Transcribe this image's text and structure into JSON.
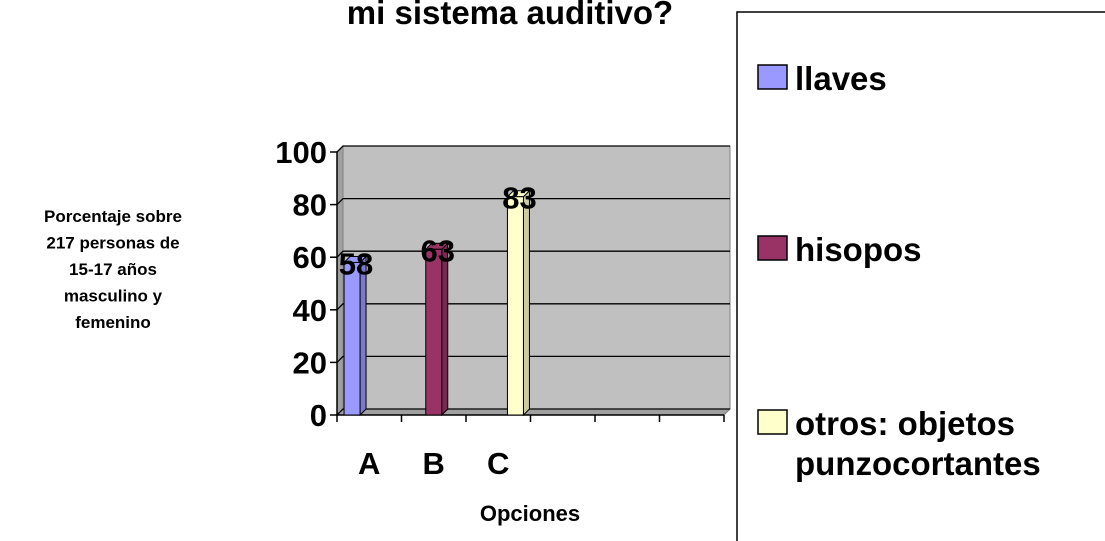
{
  "chart_data": {
    "type": "bar",
    "title": "mi sistema auditivo?",
    "xlabel": "Opciones",
    "ylabel": [
      "Porcentaje sobre",
      "217 personas de",
      "15-17 años",
      "masculino y",
      "femenino"
    ],
    "categories": [
      "A",
      "B",
      "C",
      null,
      null,
      null
    ],
    "series": [
      {
        "name": "llaves",
        "color": "#9999ff",
        "values": [
          58,
          null,
          null,
          null,
          null,
          null
        ]
      },
      {
        "name": "hisopos",
        "color": "#993366",
        "values": [
          null,
          63,
          null,
          null,
          null,
          null
        ]
      },
      {
        "name": "otros: objetos punzocortantes",
        "color": "#ffffcc",
        "values": [
          null,
          null,
          83,
          null,
          null,
          null
        ]
      }
    ],
    "ylim": [
      0,
      100
    ],
    "yticks": [
      0,
      20,
      40,
      60,
      80,
      100
    ],
    "grid": true,
    "legend": "right"
  }
}
